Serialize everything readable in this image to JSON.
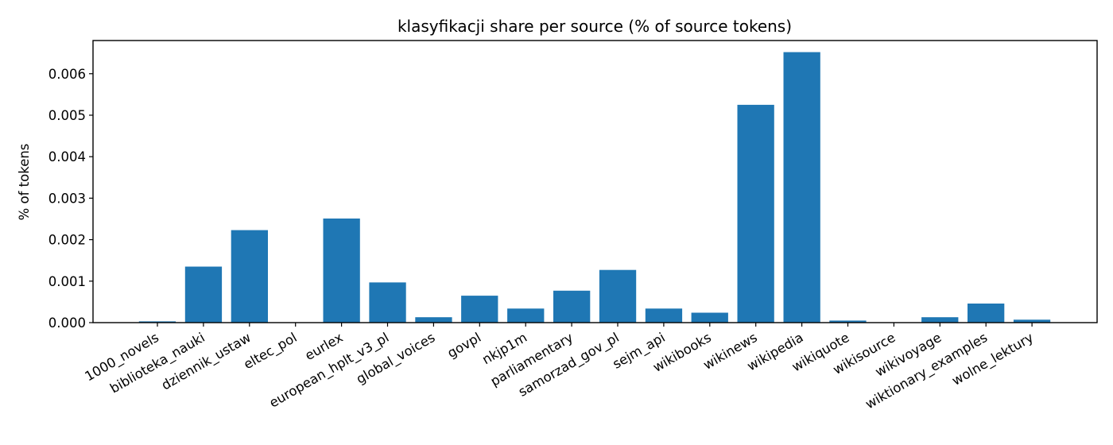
{
  "chart_data": {
    "type": "bar",
    "title": "klasyfikacji share per source (% of source tokens)",
    "xlabel": "",
    "ylabel": "% of tokens",
    "ylim": [
      0,
      0.0068
    ],
    "yticks": [
      "0.000",
      "0.001",
      "0.002",
      "0.003",
      "0.004",
      "0.005",
      "0.006"
    ],
    "grid": false,
    "legend": "none",
    "bar_color": "#1f77b4",
    "categories": [
      "1000_novels",
      "biblioteka_nauki",
      "dziennik_ustaw",
      "eltec_pol",
      "eurlex",
      "european_hplt_v3_pl",
      "global_voices",
      "govpl",
      "nkjp1m",
      "parliamentary",
      "samorzad_gov_pl",
      "sejm_api",
      "wikibooks",
      "wikinews",
      "wikipedia",
      "wikiquote",
      "wikisource",
      "wikivoyage",
      "wiktionary_examples",
      "wolne_lektury"
    ],
    "values": [
      3e-05,
      0.00135,
      0.00223,
      0.0,
      0.00251,
      0.00097,
      0.00013,
      0.00065,
      0.00034,
      0.00077,
      0.00127,
      0.00034,
      0.00024,
      0.00525,
      0.00652,
      5e-05,
      0.0,
      0.00013,
      0.00046,
      7e-05
    ]
  }
}
